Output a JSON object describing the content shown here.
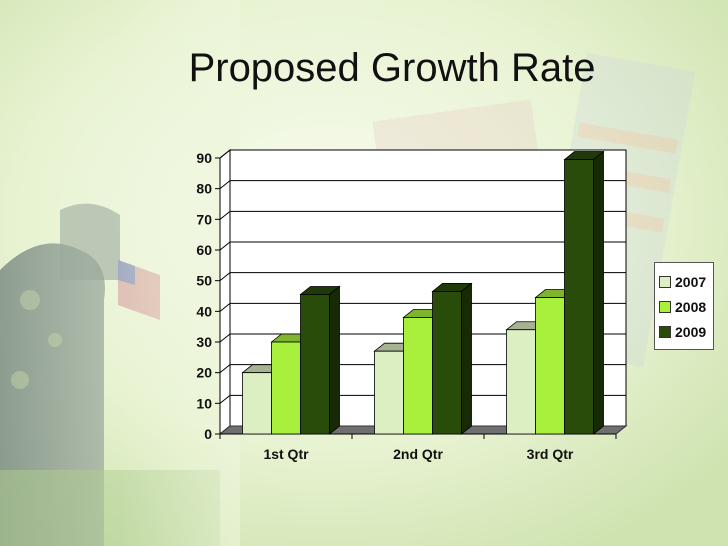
{
  "slide": {
    "title": "Proposed Growth Rate",
    "accent_colors": {
      "background": "#eef6dc",
      "plot_wall": "#ffffff",
      "floor": "#777777"
    }
  },
  "chart_data": {
    "type": "bar",
    "title": "",
    "xlabel": "",
    "ylabel": "",
    "categories": [
      "1st Qtr",
      "2nd Qtr",
      "3rd Qtr"
    ],
    "series": [
      {
        "name": "2007",
        "values": [
          20,
          27,
          34
        ],
        "color": "#dcefc3"
      },
      {
        "name": "2008",
        "values": [
          30,
          38,
          44.5
        ],
        "color": "#a9f03c"
      },
      {
        "name": "2009",
        "values": [
          45.5,
          46.5,
          89.5
        ],
        "color": "#2a4c0a"
      }
    ],
    "ylim": [
      0,
      90
    ],
    "yticks": [
      "0",
      "10",
      "20",
      "30",
      "40",
      "50",
      "60",
      "70",
      "80",
      "90"
    ],
    "grid": true,
    "three_d": true,
    "legend_position": "right"
  }
}
